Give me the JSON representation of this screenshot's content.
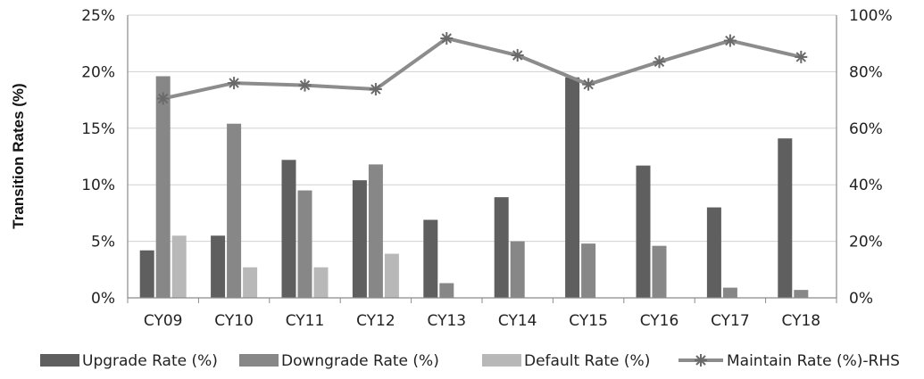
{
  "chart_data": {
    "type": "bar",
    "title": "",
    "xlabel": "",
    "ylabel": "Transition Rates (%)",
    "ylabel_right": "",
    "categories": [
      "CY09",
      "CY10",
      "CY11",
      "CY12",
      "CY13",
      "CY14",
      "CY15",
      "CY16",
      "CY17",
      "CY18"
    ],
    "ylim": [
      0,
      25
    ],
    "ylim_right": [
      0,
      100
    ],
    "y_ticks": [
      "0%",
      "5%",
      "10%",
      "15%",
      "20%",
      "25%"
    ],
    "y_ticks_right": [
      "0%",
      "20%",
      "40%",
      "60%",
      "80%",
      "100%"
    ],
    "grid": true,
    "legend_position": "bottom",
    "series": [
      {
        "name": "Upgrade Rate (%)",
        "type": "bar",
        "axis": "left",
        "color": "#5f5f5f",
        "values": [
          4.2,
          5.5,
          12.2,
          10.4,
          6.9,
          8.9,
          19.5,
          11.7,
          8.0,
          14.1
        ]
      },
      {
        "name": "Downgrade Rate (%)",
        "type": "bar",
        "axis": "left",
        "color": "#878787",
        "values": [
          19.6,
          15.4,
          9.5,
          11.8,
          1.3,
          5.0,
          4.8,
          4.6,
          0.9,
          0.7
        ]
      },
      {
        "name": "Default Rate (%)",
        "type": "bar",
        "axis": "left",
        "color": "#b8b8b8",
        "values": [
          5.5,
          2.7,
          2.7,
          3.9,
          0,
          0,
          0,
          0,
          0,
          0
        ]
      },
      {
        "name": "Maintain Rate (%)-RHS",
        "type": "line",
        "axis": "right",
        "color": "#8c8c8c",
        "values": [
          70.5,
          76,
          75.2,
          73.8,
          91.8,
          85.8,
          75.5,
          83.5,
          91,
          85.2
        ]
      }
    ]
  }
}
